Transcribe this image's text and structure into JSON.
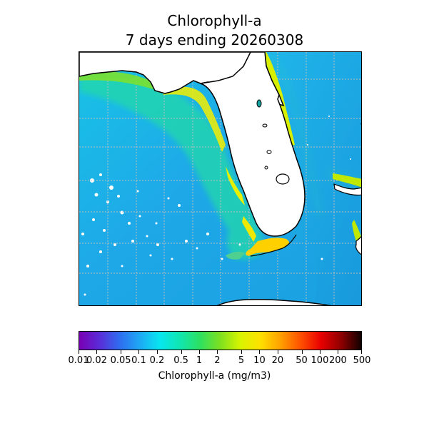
{
  "title": {
    "line1": "Chlorophyll-a",
    "line2": "7 days ending 20260308"
  },
  "map": {
    "region": "Florida and eastern Gulf of Mexico",
    "gridlines": "dotted",
    "colors": {
      "land": "#ffffff",
      "coastline": "#000000",
      "ocean_low": "#1ea8e8",
      "ocean_mid": "#10d0e6",
      "shelf_green": "#2fe07a",
      "coastal_yellow": "#f2f000",
      "coastal_orange": "#ffb000"
    }
  },
  "colorbar": {
    "label": "Chlorophyll-a (mg/m3)",
    "scale": "log",
    "range": [
      0.01,
      500
    ],
    "ticks": [
      "0.01",
      "0.02",
      "0.05",
      "0.1",
      "0.2",
      "0.5",
      "1",
      "2",
      "5",
      "10",
      "20",
      "50",
      "100",
      "200",
      "500"
    ],
    "colormap": [
      "#7a00b4",
      "#5a2cd8",
      "#2f6df0",
      "#1ea8f4",
      "#08e6f0",
      "#10e6b0",
      "#2ee060",
      "#7ee020",
      "#d8f400",
      "#ffe000",
      "#ffa000",
      "#ff5000",
      "#e80000",
      "#900000",
      "#100000"
    ]
  }
}
